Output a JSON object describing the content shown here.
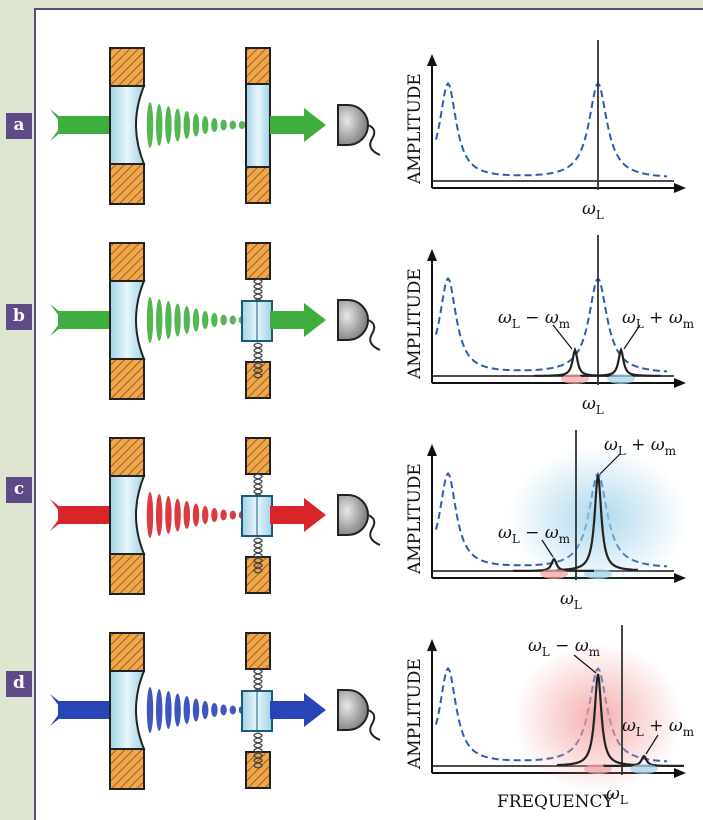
{
  "panels": [
    {
      "label": "a",
      "beam_color": "#3fae3f",
      "sidebands": false,
      "peak_x": "center",
      "omega_L_label": {
        "omega": "ω",
        "sub": "L"
      }
    },
    {
      "label": "b",
      "beam_color": "#3fae3f",
      "sidebands": true,
      "omega_L_label": {
        "omega": "ω",
        "sub": "L"
      },
      "sideband_minus_label": {
        "omega": "ω",
        "sub": "L",
        "op": " − ",
        "omega2": "ω",
        "sub2": "m"
      },
      "sideband_plus_label": {
        "omega": "ω",
        "sub": "L",
        "op": " + ",
        "omega2": "ω",
        "sub2": "m"
      }
    },
    {
      "label": "c",
      "beam_color": "#d9252a",
      "detuning": "red",
      "omega_L_label": {
        "omega": "ω",
        "sub": "L"
      },
      "sideband_minus_label": {
        "omega": "ω",
        "sub": "L",
        "op": " − ",
        "omega2": "ω",
        "sub2": "m"
      },
      "sideband_plus_label": {
        "omega": "ω",
        "sub": "L",
        "op": " + ",
        "omega2": "ω",
        "sub2": "m"
      }
    },
    {
      "label": "d",
      "beam_color": "#2a44b8",
      "detuning": "blue",
      "omega_L_label": {
        "omega": "ω",
        "sub": "L"
      },
      "sideband_minus_label": {
        "omega": "ω",
        "sub": "L",
        "op": " − ",
        "omega2": "ω",
        "sub2": "m"
      },
      "sideband_plus_label": {
        "omega": "ω",
        "sub": "L",
        "op": " + ",
        "omega2": "ω",
        "sub2": "m"
      }
    }
  ],
  "axis": {
    "y_label": "AMPLITUDE",
    "x_label": "FREQUENCY"
  },
  "colors": {
    "background": "#dfe6cf",
    "frame_border": "#5d4a86",
    "label_box": "#5d4a86",
    "mirror_orange": "#f0a64a",
    "mirror_glass": "#bfe3f0",
    "cavity_mode": "#2b5fad",
    "laser_line": "#333333"
  }
}
